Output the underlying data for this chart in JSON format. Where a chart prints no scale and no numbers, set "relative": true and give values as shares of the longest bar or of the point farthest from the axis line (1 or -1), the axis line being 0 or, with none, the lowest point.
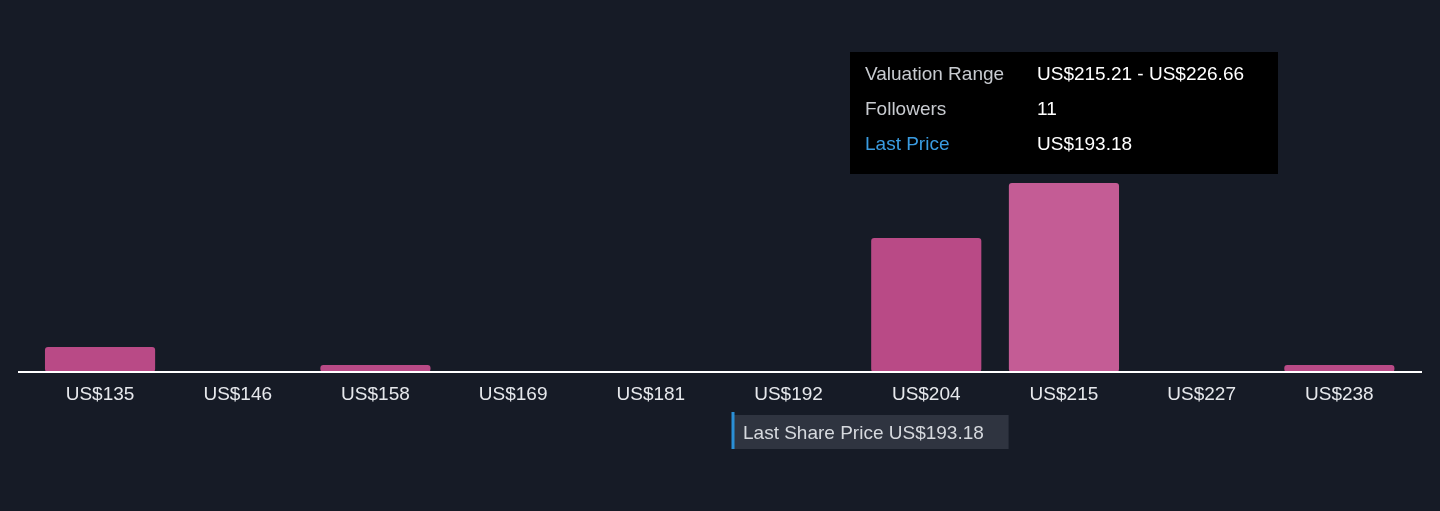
{
  "chart_data": {
    "type": "bar",
    "relative": true,
    "categories": [
      "US$135",
      "US$146",
      "US$158",
      "US$169",
      "US$181",
      "US$192",
      "US$204",
      "US$215",
      "US$227",
      "US$238"
    ],
    "values": [
      0.132,
      0,
      0.037,
      0,
      0,
      0,
      0.709,
      1,
      0,
      0.037
    ],
    "colors": [
      "#b94a86",
      "#b94a86",
      "#b94a86",
      "#b94a86",
      "#b94a86",
      "#b94a86",
      "#b94a86",
      "#c45c95",
      "#b94a86",
      "#b94a86"
    ],
    "annotations": [
      "Valuation Range",
      "US$215.21 - US$226.66",
      "Followers",
      "11",
      "Last Price",
      "US$193.18",
      "Last Share Price US$193.18"
    ]
  }
}
